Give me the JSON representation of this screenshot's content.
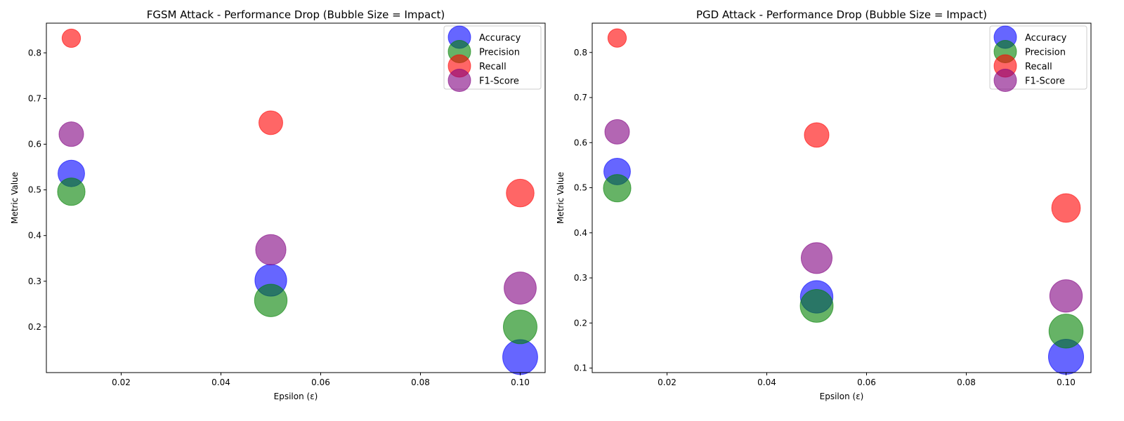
{
  "chart_data": [
    {
      "type": "scatter",
      "title": "FGSM Attack - Performance Drop (Bubble Size = Impact)",
      "xlabel": "Epsilon (ε)",
      "ylabel": "Metric Value",
      "xlim": [
        0.005,
        0.105
      ],
      "ylim": [
        0.1,
        0.865
      ],
      "xticks": [
        0.02,
        0.04,
        0.06,
        0.08,
        0.1
      ],
      "xtick_labels": [
        "0.02",
        "0.04",
        "0.06",
        "0.08",
        "0.10"
      ],
      "yticks": [
        0.2,
        0.3,
        0.4,
        0.5,
        0.6,
        0.7,
        0.8
      ],
      "ytick_labels": [
        "0.2",
        "0.3",
        "0.4",
        "0.5",
        "0.6",
        "0.7",
        "0.8"
      ],
      "legend_position": "top-right",
      "x": [
        0.01,
        0.05,
        0.1
      ],
      "series": [
        {
          "name": "Accuracy",
          "color": "#0000ff",
          "values": [
            0.536,
            0.302,
            0.134
          ],
          "impact": [
            0.46,
            0.7,
            0.87
          ]
        },
        {
          "name": "Precision",
          "color": "#008000",
          "values": [
            0.496,
            0.258,
            0.2
          ],
          "impact": [
            0.5,
            0.74,
            0.8
          ]
        },
        {
          "name": "Recall",
          "color": "#ff0000",
          "values": [
            0.832,
            0.647,
            0.493
          ],
          "impact": [
            0.17,
            0.35,
            0.51
          ]
        },
        {
          "name": "F1-Score",
          "color": "#800080",
          "values": [
            0.622,
            0.369,
            0.285
          ],
          "impact": [
            0.38,
            0.63,
            0.72
          ]
        }
      ]
    },
    {
      "type": "scatter",
      "title": "PGD Attack - Performance Drop (Bubble Size = Impact)",
      "xlabel": "Epsilon (ε)",
      "ylabel": "Metric Value",
      "xlim": [
        0.005,
        0.105
      ],
      "ylim": [
        0.09,
        0.865
      ],
      "xticks": [
        0.02,
        0.04,
        0.06,
        0.08,
        0.1
      ],
      "xtick_labels": [
        "0.02",
        "0.04",
        "0.06",
        "0.08",
        "0.10"
      ],
      "yticks": [
        0.1,
        0.2,
        0.3,
        0.4,
        0.5,
        0.6,
        0.7,
        0.8
      ],
      "ytick_labels": [
        "0.1",
        "0.2",
        "0.3",
        "0.4",
        "0.5",
        "0.6",
        "0.7",
        "0.8"
      ],
      "legend_position": "top-right",
      "x": [
        0.01,
        0.05,
        0.1
      ],
      "series": [
        {
          "name": "Accuracy",
          "color": "#0000ff",
          "values": [
            0.536,
            0.258,
            0.125
          ],
          "impact": [
            0.46,
            0.74,
            0.88
          ]
        },
        {
          "name": "Precision",
          "color": "#008000",
          "values": [
            0.499,
            0.238,
            0.182
          ],
          "impact": [
            0.5,
            0.76,
            0.82
          ]
        },
        {
          "name": "Recall",
          "color": "#ff0000",
          "values": [
            0.832,
            0.617,
            0.455
          ],
          "impact": [
            0.17,
            0.38,
            0.55
          ]
        },
        {
          "name": "F1-Score",
          "color": "#800080",
          "values": [
            0.624,
            0.344,
            0.26
          ],
          "impact": [
            0.38,
            0.66,
            0.74
          ]
        }
      ]
    }
  ]
}
